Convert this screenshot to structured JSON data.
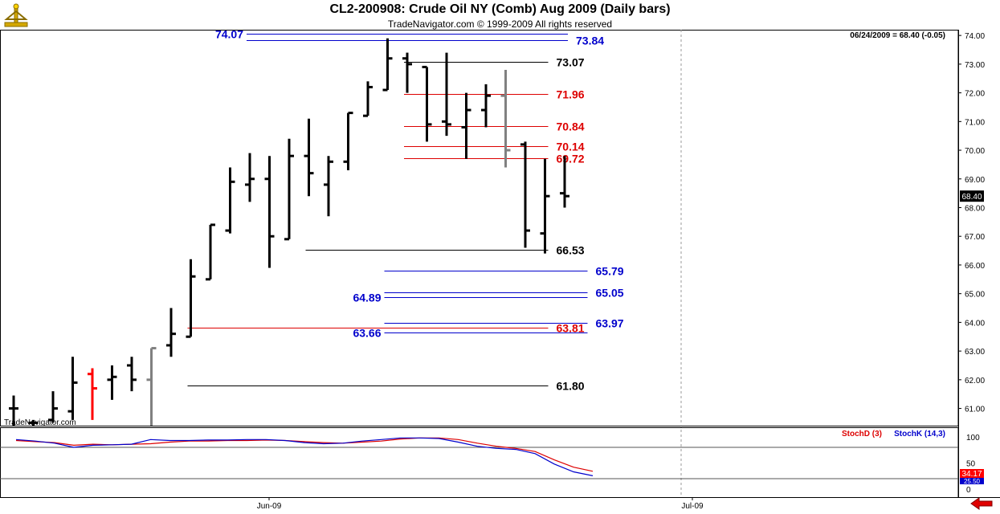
{
  "header": {
    "title": "CL2-200908:  Crude Oil NY (Comb) Aug 2009  (Daily bars)",
    "subtitle": "TradeNavigator.com © 1999-2009 All rights reserved",
    "info": "06/24/2009 = 68.40 (-0.05)",
    "watermark": "TradeNavigator.com"
  },
  "colors": {
    "bar": "#000000",
    "bar_gray": "#808080",
    "bar_red": "#ff0000",
    "blue": "#0000cc",
    "red": "#dd0000",
    "black": "#000000",
    "stochD": "#dd0000",
    "stochK": "#0000cc"
  },
  "chart_data": [
    {
      "type": "ohlc",
      "x_ticks": [
        "Jun-09",
        "Jul-09"
      ],
      "y_ticks": [
        61.0,
        62.0,
        63.0,
        64.0,
        65.0,
        66.0,
        67.0,
        68.0,
        69.0,
        70.0,
        71.0,
        72.0,
        73.0,
        74.0
      ],
      "ylim": [
        60.4,
        74.2
      ],
      "last_price": "68.40",
      "bars": [
        {
          "o": 61.0,
          "h": 61.45,
          "l": 60.4,
          "c": 61.0
        },
        {
          "o": 60.5,
          "h": 60.6,
          "l": 60.4,
          "c": 60.5
        },
        {
          "o": 60.6,
          "h": 61.6,
          "l": 60.5,
          "c": 61.0
        },
        {
          "o": 60.9,
          "h": 62.8,
          "l": 60.6,
          "c": 61.9
        },
        {
          "o": 62.2,
          "h": 62.4,
          "l": 60.6,
          "c": 61.7,
          "color": "red"
        },
        {
          "o": 62.0,
          "h": 62.5,
          "l": 61.3,
          "c": 62.1
        },
        {
          "o": 62.5,
          "h": 62.8,
          "l": 61.6,
          "c": 62.0
        },
        {
          "o": 62.0,
          "h": 63.1,
          "l": 60.4,
          "c": 63.1,
          "color": "gray"
        },
        {
          "o": 63.2,
          "h": 64.5,
          "l": 62.8,
          "c": 63.6
        },
        {
          "o": 63.5,
          "h": 66.2,
          "l": 63.5,
          "c": 65.6
        },
        {
          "o": 65.5,
          "h": 67.4,
          "l": 65.5,
          "c": 67.4
        },
        {
          "o": 67.2,
          "h": 69.4,
          "l": 67.1,
          "c": 68.9
        },
        {
          "o": 68.8,
          "h": 69.9,
          "l": 68.2,
          "c": 69.0
        },
        {
          "o": 69.0,
          "h": 69.8,
          "l": 65.9,
          "c": 67.0
        },
        {
          "o": 66.9,
          "h": 70.4,
          "l": 66.9,
          "c": 69.8
        },
        {
          "o": 69.8,
          "h": 71.1,
          "l": 68.4,
          "c": 69.2
        },
        {
          "o": 68.8,
          "h": 69.8,
          "l": 67.7,
          "c": 69.6
        },
        {
          "o": 69.6,
          "h": 71.3,
          "l": 69.3,
          "c": 71.3
        },
        {
          "o": 71.2,
          "h": 72.4,
          "l": 71.2,
          "c": 72.2
        },
        {
          "o": 72.1,
          "h": 73.9,
          "l": 72.1,
          "c": 73.2
        },
        {
          "o": 73.2,
          "h": 73.4,
          "l": 72.0,
          "c": 73.0
        },
        {
          "o": 72.9,
          "h": 72.9,
          "l": 70.3,
          "c": 70.9
        },
        {
          "o": 71.0,
          "h": 73.4,
          "l": 70.5,
          "c": 70.9
        },
        {
          "o": 70.8,
          "h": 72.0,
          "l": 69.7,
          "c": 71.4
        },
        {
          "o": 71.4,
          "h": 72.3,
          "l": 70.8,
          "c": 71.9
        },
        {
          "o": 71.9,
          "h": 72.8,
          "l": 69.4,
          "c": 70.0,
          "color": "gray"
        },
        {
          "o": 70.2,
          "h": 70.3,
          "l": 66.6,
          "c": 67.2
        },
        {
          "o": 67.1,
          "h": 69.7,
          "l": 66.4,
          "c": 68.4
        },
        {
          "o": 68.5,
          "h": 69.8,
          "l": 68.0,
          "c": 68.4
        }
      ],
      "levels": [
        {
          "price": 74.07,
          "label": "74.07",
          "color": "blue",
          "from": 12,
          "to": 28,
          "label_side": "left"
        },
        {
          "price": 73.84,
          "label": "73.84",
          "color": "blue",
          "from": 12,
          "to": 28,
          "label_side": "right"
        },
        {
          "price": 73.07,
          "label": "73.07",
          "color": "black",
          "from": 20,
          "to": 27,
          "label_side": "right"
        },
        {
          "price": 71.96,
          "label": "71.96",
          "color": "red",
          "from": 20,
          "to": 27,
          "label_side": "right"
        },
        {
          "price": 70.84,
          "label": "70.84",
          "color": "red",
          "from": 20,
          "to": 27,
          "label_side": "right"
        },
        {
          "price": 70.14,
          "label": "70.14",
          "color": "red",
          "from": 20,
          "to": 27,
          "label_side": "right"
        },
        {
          "price": 69.72,
          "label": "69.72",
          "color": "red",
          "from": 20,
          "to": 27,
          "label_side": "right"
        },
        {
          "price": 66.53,
          "label": "66.53",
          "color": "black",
          "from": 15,
          "to": 27,
          "label_side": "right"
        },
        {
          "price": 65.79,
          "label": "65.79",
          "color": "blue",
          "from": 19,
          "to": 29,
          "label_side": "right"
        },
        {
          "price": 65.05,
          "label": "65.05",
          "color": "blue",
          "from": 19,
          "to": 29,
          "label_side": "right"
        },
        {
          "price": 64.89,
          "label": "64.89",
          "color": "blue",
          "from": 19,
          "to": 29,
          "label_side": "left"
        },
        {
          "price": 63.97,
          "label": "63.97",
          "color": "blue",
          "from": 19,
          "to": 29,
          "label_side": "right"
        },
        {
          "price": 63.81,
          "label": "63.81",
          "color": "red",
          "from": 9,
          "to": 27,
          "label_side": "right"
        },
        {
          "price": 63.66,
          "label": "63.66",
          "color": "blue",
          "from": 19,
          "to": 29,
          "label_side": "left"
        },
        {
          "price": 61.8,
          "label": "61.80",
          "color": "black",
          "from": 9,
          "to": 27,
          "label_side": "right"
        }
      ]
    },
    {
      "type": "line",
      "legend": [
        "StochD (3)",
        "StochK (14,3)"
      ],
      "y_ticks": [
        0,
        50,
        100
      ],
      "ylim": [
        0,
        100
      ],
      "reference_lines": [
        80,
        20
      ],
      "readouts": [
        "34.17",
        "25.50"
      ],
      "series": [
        {
          "name": "StochD (3)",
          "color": "stochD",
          "values": [
            93,
            91,
            89,
            84,
            86,
            85,
            86,
            87,
            90,
            92,
            92,
            93,
            93,
            94,
            93,
            91,
            89,
            88,
            90,
            92,
            96,
            98,
            98,
            95,
            88,
            82,
            78,
            72,
            56,
            42,
            34.17
          ]
        },
        {
          "name": "StochK (14,3)",
          "color": "stochK",
          "values": [
            95,
            92,
            88,
            80,
            84,
            85,
            86,
            95,
            93,
            93,
            94,
            94,
            95,
            95,
            93,
            89,
            87,
            88,
            92,
            95,
            98,
            98,
            97,
            90,
            82,
            78,
            76,
            68,
            48,
            33,
            25.5
          ]
        }
      ],
      "points": 31
    }
  ],
  "axis": {
    "x_labels": [
      "Jun-09",
      "Jul-09"
    ]
  }
}
